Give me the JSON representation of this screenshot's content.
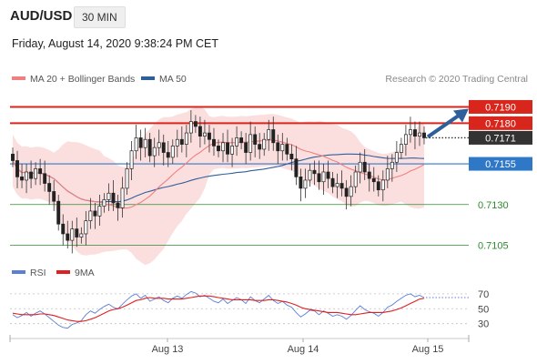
{
  "header": {
    "symbol": "AUD/USD",
    "timeframe": "30 MIN",
    "datetime": "Friday, August 14, 2020 9:38:24 PM CET"
  },
  "legend": {
    "ma20": {
      "label": "MA 20 + Bollinger Bands",
      "color": "#f08080"
    },
    "ma50": {
      "label": "MA 50",
      "color": "#2f5f9a"
    },
    "credit": "Research © 2020 Trading Central"
  },
  "chart_data": {
    "type": "candlestick",
    "x_ticks": [
      "Aug 13",
      "Aug 14",
      "Aug 15"
    ],
    "price_levels": [
      {
        "value": "0.7190",
        "kind": "resistance",
        "color": "#d9261c"
      },
      {
        "value": "0.7180",
        "kind": "resistance",
        "color": "#d9261c"
      },
      {
        "value": "0.7171",
        "kind": "last",
        "color": "#333333"
      },
      {
        "value": "0.7155",
        "kind": "pivot",
        "color": "#2f78c8"
      },
      {
        "value": "0.7130",
        "kind": "support",
        "color": "#2e8b2e"
      },
      {
        "value": "0.7105",
        "kind": "support",
        "color": "#2e8b2e"
      }
    ],
    "price_range": [
      0.7098,
      0.7202
    ],
    "close": [
      0.7157,
      0.7147,
      0.7145,
      0.715,
      0.7146,
      0.7152,
      0.7149,
      0.7143,
      0.7138,
      0.7132,
      0.7118,
      0.7112,
      0.7108,
      0.7115,
      0.711,
      0.7112,
      0.712,
      0.7126,
      0.7123,
      0.7129,
      0.7133,
      0.7137,
      0.7131,
      0.7128,
      0.714,
      0.7152,
      0.7163,
      0.7171,
      0.7165,
      0.717,
      0.716,
      0.7165,
      0.7168,
      0.7162,
      0.7159,
      0.7166,
      0.717,
      0.7167,
      0.7174,
      0.7181,
      0.7178,
      0.7172,
      0.7174,
      0.717,
      0.7166,
      0.7163,
      0.7168,
      0.7161,
      0.7166,
      0.7171,
      0.7168,
      0.7162,
      0.7173,
      0.7167,
      0.7164,
      0.717,
      0.7176,
      0.7168,
      0.7163,
      0.7167,
      0.7161,
      0.7158,
      0.7147,
      0.714,
      0.7145,
      0.7151,
      0.7149,
      0.7144,
      0.715,
      0.7146,
      0.7141,
      0.7143,
      0.714,
      0.7135,
      0.7141,
      0.715,
      0.7156,
      0.715,
      0.7146,
      0.7144,
      0.7139,
      0.7145,
      0.7152,
      0.7156,
      0.7162,
      0.7167,
      0.7173,
      0.7176,
      0.7172,
      0.7174,
      0.7171
    ],
    "rsi": {
      "ticks": [
        70,
        50,
        30
      ],
      "range": [
        15,
        82
      ],
      "rsi": [
        42,
        38,
        41,
        45,
        40,
        44,
        47,
        43,
        38,
        33,
        28,
        25,
        24,
        29,
        31,
        34,
        42,
        47,
        44,
        49,
        53,
        56,
        52,
        50,
        56,
        62,
        67,
        70,
        64,
        68,
        60,
        63,
        66,
        61,
        58,
        64,
        67,
        64,
        69,
        73,
        71,
        66,
        68,
        64,
        60,
        58,
        63,
        57,
        61,
        65,
        62,
        57,
        66,
        61,
        58,
        63,
        68,
        61,
        57,
        60,
        55,
        52,
        45,
        39,
        43,
        48,
        47,
        42,
        47,
        44,
        40,
        42,
        40,
        36,
        41,
        48,
        54,
        49,
        46,
        44,
        40,
        45,
        52,
        55,
        60,
        64,
        68,
        70,
        66,
        68,
        65
      ],
      "ma9": [
        44,
        43,
        42,
        42,
        42,
        42,
        43,
        43,
        42,
        41,
        39,
        37,
        35,
        34,
        33,
        33,
        34,
        36,
        38,
        41,
        44,
        47,
        49,
        50,
        52,
        55,
        58,
        61,
        62,
        64,
        65,
        64,
        64,
        64,
        63,
        63,
        63,
        63,
        64,
        65,
        66,
        67,
        67,
        67,
        66,
        65,
        64,
        63,
        62,
        62,
        62,
        62,
        62,
        61,
        61,
        61,
        62,
        62,
        61,
        60,
        59,
        57,
        55,
        52,
        50,
        49,
        48,
        47,
        46,
        45,
        45,
        45,
        44,
        43,
        42,
        42,
        43,
        44,
        45,
        45,
        45,
        45,
        46,
        47,
        49,
        51,
        54,
        57,
        60,
        63,
        64
      ],
      "legend_rsi": {
        "label": "RSI",
        "color": "#5b7fd4"
      },
      "legend_ma": {
        "label": "9MA",
        "color": "#e02020"
      }
    }
  }
}
